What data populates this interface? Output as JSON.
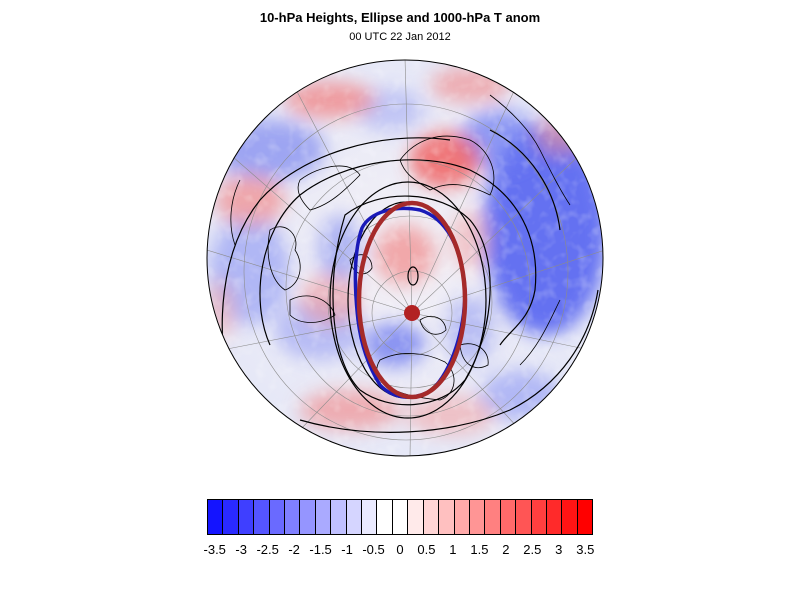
{
  "figure": {
    "title": "10-hPa Heights, Ellipse and 1000-hPa T anom",
    "subtitle": "00 UTC 22 Jan 2012"
  },
  "map": {
    "projection": "orthographic-north-polar",
    "field": "1000-hPa T anom",
    "overlays": [
      "10-hPa height contours",
      "vortex ellipse",
      "ellipse centroid",
      "coastlines",
      "lat-lon grid"
    ],
    "colors": {
      "ellipse": "#a52a2a",
      "vortex_edge": "#1a1ab8",
      "contours": "#000000",
      "grid": "#8c8c8c"
    }
  },
  "colorbar": {
    "labels": [
      "-3.5",
      "-3",
      "-2.5",
      "-2",
      "-1.5",
      "-1",
      "-0.5",
      "0",
      "0.5",
      "1",
      "1.5",
      "2",
      "2.5",
      "3",
      "3.5"
    ],
    "colors": [
      "#1414ff",
      "#2a2aff",
      "#3f3fff",
      "#5555ff",
      "#6a6aff",
      "#8080ff",
      "#9595ff",
      "#aaaaff",
      "#c0c0ff",
      "#d5d5ff",
      "#eaeaff",
      "#ffffff",
      "#ffffff",
      "#ffeaea",
      "#ffd5d5",
      "#ffc0c0",
      "#ffaaaa",
      "#ff9595",
      "#ff8080",
      "#ff6a6a",
      "#ff5555",
      "#ff3f3f",
      "#ff2a2a",
      "#ff1414",
      "#ff0000"
    ]
  }
}
